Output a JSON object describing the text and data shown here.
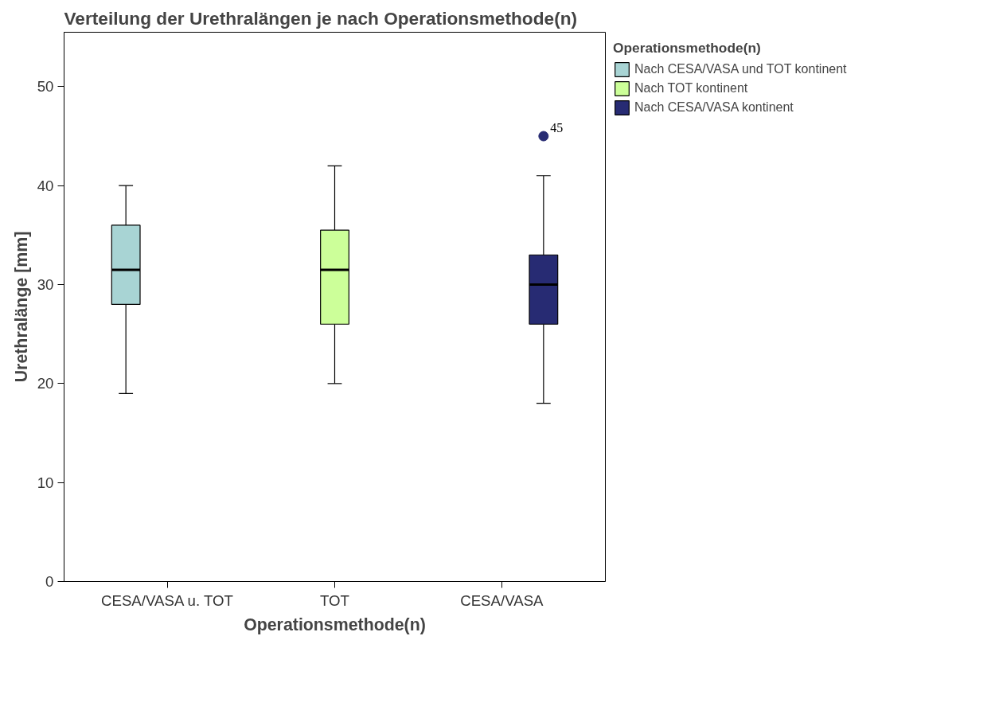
{
  "chart_data": {
    "type": "box",
    "title": "Verteilung der Urethralängen je nach Operationsmethode(n)",
    "xlabel": "Operationsmethode(n)",
    "ylabel": "Urethralänge [mm]",
    "legend_title": "Operationsmethode(n)",
    "categories": [
      "CESA/VASA u. TOT",
      "TOT",
      "CESA/VASA"
    ],
    "series": [
      {
        "name": "Nach CESA/VASA und TOT kontinent",
        "color": "#a8d4d4",
        "boxes": [
          {
            "low": 19,
            "q1": 28,
            "median": 31.5,
            "q3": 36,
            "high": 40
          },
          null,
          null
        ]
      },
      {
        "name": "Nach TOT kontinent",
        "color": "#ccff99",
        "boxes": [
          null,
          {
            "low": 20,
            "q1": 26,
            "median": 31.5,
            "q3": 35.5,
            "high": 42
          },
          null
        ]
      },
      {
        "name": "Nach CESA/VASA kontinent",
        "color": "#272b73",
        "boxes": [
          null,
          null,
          {
            "low": 18,
            "q1": 26,
            "median": 30,
            "q3": 33,
            "high": 41,
            "outliers": [
              45
            ]
          }
        ]
      }
    ],
    "ylim": [
      0,
      55.5
    ],
    "yticks": [
      0,
      10,
      20,
      30,
      40,
      50
    ],
    "grid": false,
    "legend": "right",
    "annotations": [
      "45"
    ]
  }
}
